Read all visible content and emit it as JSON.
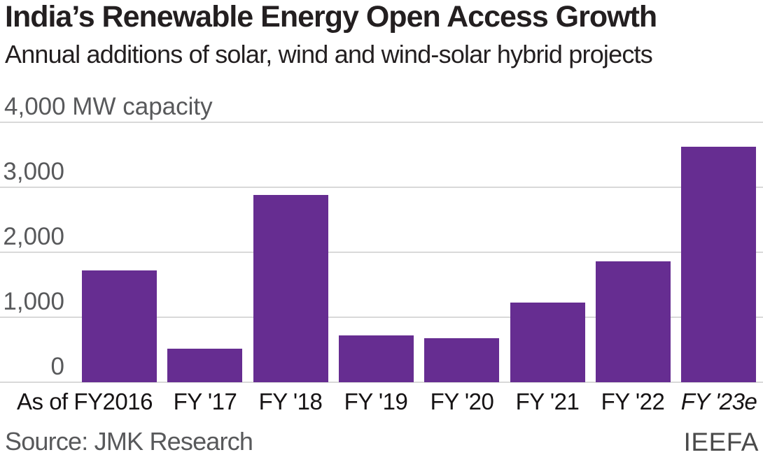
{
  "header": {
    "title": "India’s Renewable Energy Open Access Growth",
    "subtitle": "Annual additions of solar, wind and wind-solar hybrid projects"
  },
  "chart_data": {
    "type": "bar",
    "categories": [
      "As of FY2016",
      "FY '17",
      "FY '18",
      "FY '19",
      "FY '20",
      "FY '21",
      "FY '22",
      "FY '23e"
    ],
    "values": [
      1720,
      520,
      2875,
      715,
      680,
      1220,
      1860,
      3610
    ],
    "title": "India’s Renewable Energy Open Access Growth",
    "subtitle": "Annual additions of solar, wind and wind-solar hybrid projects",
    "xlabel": "",
    "ylabel": "MW capacity",
    "ylim": [
      0,
      4000
    ],
    "yticks": [
      0,
      1000,
      2000,
      3000,
      4000
    ],
    "ytick_labels": [
      "0",
      "1,000",
      "2,000",
      "3,000"
    ],
    "ymax_label": "4,000 MW capacity",
    "grid": true,
    "legend": "none",
    "last_category_italic": true,
    "bar_color": "#662d91",
    "gridline_color": "#d9d9d9",
    "axis_text_color": "#58595b",
    "category_text_color": "#161314"
  },
  "footer": {
    "source": "Source: JMK Research",
    "attribution": "IEEFA"
  }
}
